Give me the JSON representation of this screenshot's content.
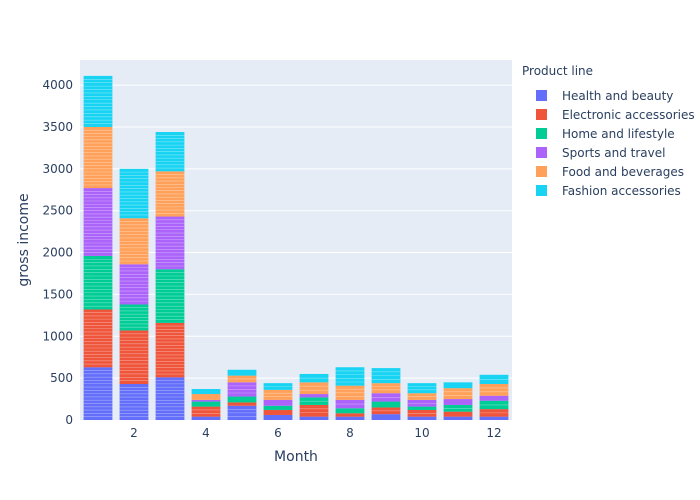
{
  "chart_data": {
    "type": "bar",
    "stacked": true,
    "xlabel": "Month",
    "ylabel": "gross income",
    "x_ticks": [
      2,
      4,
      6,
      8,
      10,
      12
    ],
    "y_ticks": [
      0,
      500,
      1000,
      1500,
      2000,
      2500,
      3000,
      3500,
      4000
    ],
    "xlim": [
      0.5,
      12.5
    ],
    "ylim": [
      0,
      4300
    ],
    "grid": true,
    "legend_title": "Product line",
    "legend_position": "right",
    "categories": [
      1,
      2,
      3,
      4,
      5,
      6,
      7,
      8,
      9,
      10,
      11,
      12
    ],
    "series": [
      {
        "name": "Health and beauty",
        "color": "#636efa",
        "values": [
          630,
          430,
          510,
          40,
          170,
          60,
          40,
          40,
          70,
          40,
          40,
          40
        ]
      },
      {
        "name": "Electronic accessories",
        "color": "#ef553b",
        "values": [
          690,
          640,
          650,
          120,
          40,
          60,
          140,
          40,
          80,
          80,
          60,
          90
        ]
      },
      {
        "name": "Home and lifestyle",
        "color": "#00cc96",
        "values": [
          640,
          310,
          640,
          60,
          70,
          50,
          90,
          60,
          70,
          40,
          80,
          100
        ]
      },
      {
        "name": "Sports and travel",
        "color": "#ab63fa",
        "values": [
          810,
          480,
          630,
          20,
          170,
          70,
          40,
          100,
          100,
          80,
          70,
          60
        ]
      },
      {
        "name": "Food and beverages",
        "color": "#ffa15a",
        "values": [
          730,
          550,
          540,
          70,
          80,
          120,
          140,
          170,
          120,
          80,
          130,
          140
        ]
      },
      {
        "name": "Fashion accessories",
        "color": "#19d3f3",
        "values": [
          610,
          590,
          470,
          60,
          70,
          80,
          100,
          220,
          180,
          120,
          70,
          110
        ]
      }
    ]
  }
}
